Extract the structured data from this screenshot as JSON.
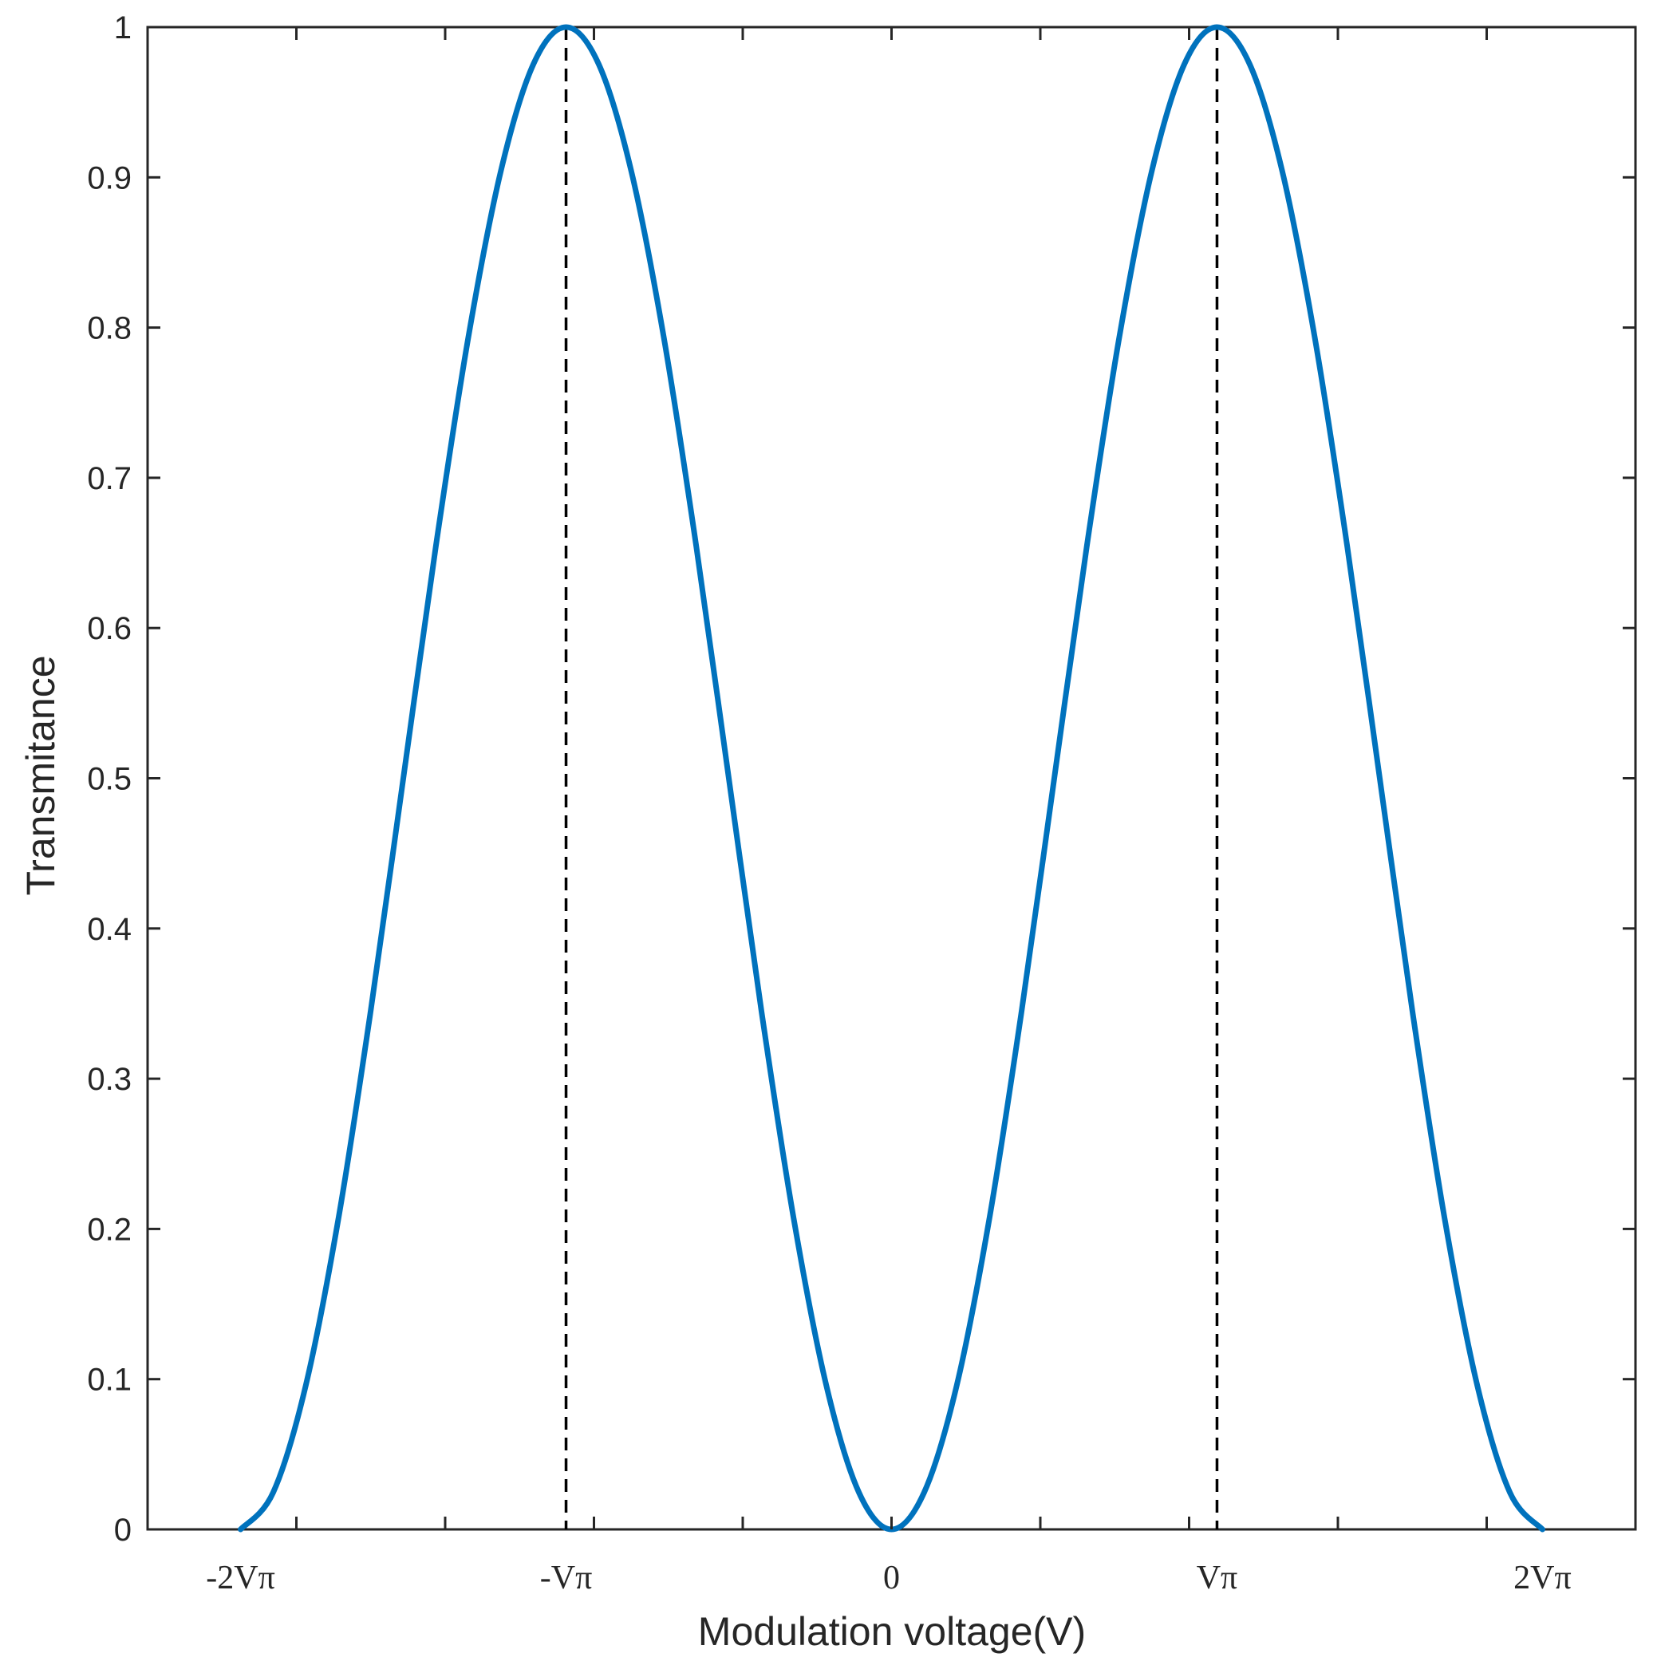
{
  "chart_data": {
    "type": "line",
    "title": "",
    "xlabel": "Modulation voltage(V)",
    "ylabel": "Transmitance",
    "xlim": [
      -2.2857,
      2.2857
    ],
    "ylim": [
      0,
      1
    ],
    "x_unit_note": "multiples of Vπ",
    "x_ticks": [
      {
        "value": -2,
        "label": "-2Vπ"
      },
      {
        "value": -1,
        "label": "-Vπ"
      },
      {
        "value": 0,
        "label": "0"
      },
      {
        "value": 1,
        "label": "Vπ"
      },
      {
        "value": 2,
        "label": "2Vπ"
      }
    ],
    "y_ticks": [
      {
        "value": 0,
        "label": "0"
      },
      {
        "value": 0.1,
        "label": "0.1"
      },
      {
        "value": 0.2,
        "label": "0.2"
      },
      {
        "value": 0.3,
        "label": "0.3"
      },
      {
        "value": 0.4,
        "label": "0.4"
      },
      {
        "value": 0.5,
        "label": "0.5"
      },
      {
        "value": 0.6,
        "label": "0.6"
      },
      {
        "value": 0.7,
        "label": "0.7"
      },
      {
        "value": 0.8,
        "label": "0.8"
      },
      {
        "value": 0.9,
        "label": "0.9"
      },
      {
        "value": 1,
        "label": "1"
      }
    ],
    "series": [
      {
        "color": "#0072bd",
        "x": [
          -2.0,
          -1.9,
          -1.8,
          -1.7,
          -1.6,
          -1.5,
          -1.4,
          -1.3,
          -1.2,
          -1.1,
          -1.0,
          -0.9,
          -0.8,
          -0.7,
          -0.6,
          -0.5,
          -0.4,
          -0.3,
          -0.2,
          -0.1,
          0.0,
          0.1,
          0.2,
          0.3,
          0.4,
          0.5,
          0.6,
          0.7,
          0.8,
          0.9,
          1.0,
          1.1,
          1.2,
          1.3,
          1.4,
          1.5,
          1.6,
          1.7,
          1.8,
          1.9,
          2.0
        ],
        "y": [
          0.0,
          0.0245,
          0.0955,
          0.2061,
          0.3455,
          0.5,
          0.6545,
          0.7939,
          0.9045,
          0.9755,
          1.0,
          0.9755,
          0.9045,
          0.7939,
          0.6545,
          0.5,
          0.3455,
          0.2061,
          0.0955,
          0.0245,
          0.0,
          0.0245,
          0.0955,
          0.2061,
          0.3455,
          0.5,
          0.6545,
          0.7939,
          0.9045,
          0.9755,
          1.0,
          0.9755,
          0.9045,
          0.7939,
          0.6545,
          0.5,
          0.3455,
          0.2061,
          0.0955,
          0.0245,
          0.0
        ]
      }
    ],
    "reference_lines": [
      {
        "x": -1,
        "style": "dashed",
        "color": "#000000"
      },
      {
        "x": 1,
        "style": "dashed",
        "color": "#000000"
      }
    ],
    "grid": false,
    "legend": "none"
  }
}
